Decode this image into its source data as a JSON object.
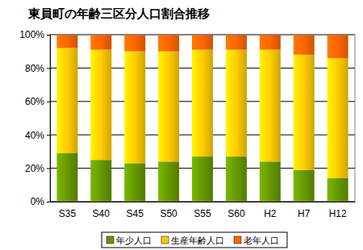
{
  "chart_data": {
    "type": "bar",
    "title": "東員町の年齢三区分人口割合推移",
    "stacked": true,
    "grid": true,
    "legend": "bottom",
    "categories": [
      "S35",
      "S40",
      "S45",
      "S50",
      "S55",
      "S60",
      "H2",
      "H7",
      "H12"
    ],
    "series": [
      {
        "name": "年少人口",
        "color": "#669900",
        "values": [
          29,
          25,
          23,
          24,
          27,
          27,
          24,
          19,
          14
        ]
      },
      {
        "name": "生産年齢人口",
        "color": "#ffcc00",
        "values": [
          63,
          66,
          67,
          66,
          64,
          64,
          67,
          69,
          72
        ]
      },
      {
        "name": "老年人口",
        "color": "#ff6600",
        "values": [
          8,
          9,
          10,
          10,
          9,
          9,
          9,
          12,
          14
        ]
      }
    ],
    "ylim": [
      0,
      100
    ],
    "yticks": [
      {
        "value": 0,
        "label": "0%"
      },
      {
        "value": 20,
        "label": "20%"
      },
      {
        "value": 40,
        "label": "40%"
      },
      {
        "value": 60,
        "label": "60%"
      },
      {
        "value": 80,
        "label": "80%"
      },
      {
        "value": 100,
        "label": "100%"
      }
    ]
  }
}
